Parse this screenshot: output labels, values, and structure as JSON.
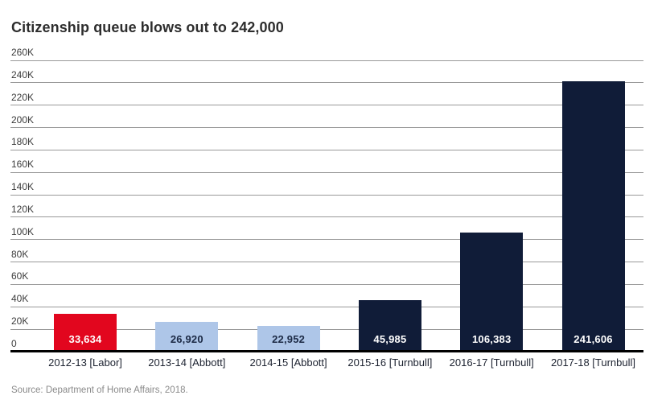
{
  "title": "Citizenship queue blows out to 242,000",
  "source": "Source: Department of Home Affairs, 2018.",
  "colors": {
    "background": "#ffffff",
    "title_text": "#2d2d2d",
    "gridline": "#999999",
    "axis_line": "#000000",
    "ytick_text": "#3c3c3c",
    "category_text": "#1c2230",
    "source_text": "#8a8a8a",
    "bar_red": "#e2061e",
    "bar_light_blue": "#aec6e8",
    "bar_navy": "#101c38",
    "label_on_dark": "#ffffff",
    "label_on_light": "#1c2a45"
  },
  "chart_data": {
    "type": "bar",
    "title": "Citizenship queue blows out to 242,000",
    "xlabel": "",
    "ylabel": "",
    "grid": true,
    "legend": "none",
    "ylim": [
      0,
      260000
    ],
    "ytick_interval": 20000,
    "ytick_labels": [
      "0",
      "20K",
      "40K",
      "60K",
      "80K",
      "100K",
      "120K",
      "140K",
      "160K",
      "180K",
      "200K",
      "220K",
      "240K",
      "260K"
    ],
    "categories": [
      "2012-13 [Labor]",
      "2013-14 [Abbott]",
      "2014-15 [Abbott]",
      "2015-16 [Turnbull]",
      "2016-17 [Turnbull]",
      "2017-18 [Turnbull]"
    ],
    "values": [
      33634,
      26920,
      22952,
      45985,
      106383,
      241606
    ],
    "value_labels": [
      "33,634",
      "26,920",
      "22,952",
      "45,985",
      "106,383",
      "241,606"
    ],
    "bar_colors": [
      "#e2061e",
      "#aec6e8",
      "#aec6e8",
      "#101c38",
      "#101c38",
      "#101c38"
    ],
    "value_label_colors": [
      "#ffffff",
      "#1c2a45",
      "#1c2a45",
      "#ffffff",
      "#ffffff",
      "#ffffff"
    ],
    "annotation": "Bar value labels are printed inside the base of each bar; category labels below the axis"
  }
}
